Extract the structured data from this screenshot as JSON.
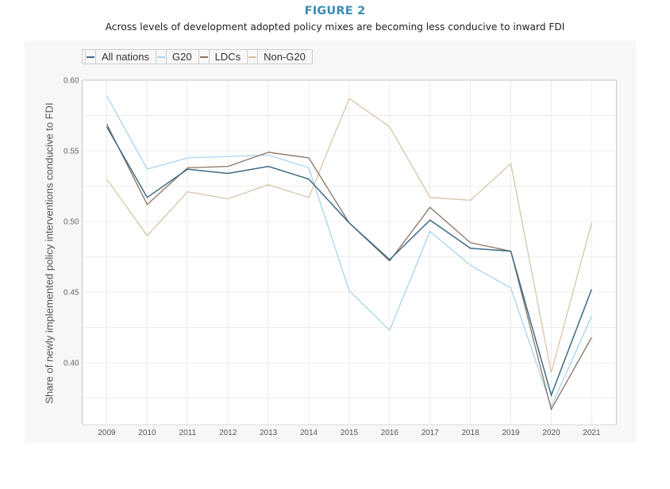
{
  "figure": {
    "label": "FIGURE 2",
    "subtitle": "Across levels of development adopted policy mixes are becoming less conducive to inward FDI"
  },
  "chart_data": {
    "type": "line",
    "title": "FIGURE 2",
    "subtitle": "Across levels of development adopted policy mixes are becoming less conducive to inward FDI",
    "xlabel": "",
    "ylabel": "Share of newly implemented policy interventions conducive to FDI",
    "x": [
      2009,
      2010,
      2011,
      2012,
      2013,
      2014,
      2015,
      2016,
      2017,
      2018,
      2019,
      2020,
      2021
    ],
    "x_tick_labels": [
      "2009",
      "2010",
      "2011",
      "2012",
      "2013",
      "2014",
      "2015",
      "2016",
      "2017",
      "2018",
      "2019",
      "2020",
      "2021"
    ],
    "y_tick_labels": [
      "0.60",
      "0.55",
      "0.50",
      "0.45",
      "0.40"
    ],
    "y_ticks": [
      0.6,
      0.55,
      0.5,
      0.45,
      0.4
    ],
    "ylim": [
      0.356,
      0.6
    ],
    "grid": true,
    "legend_position": "top-left",
    "series": [
      {
        "name": "All nations",
        "color": "#3d6a85",
        "values": [
          0.567,
          0.517,
          0.537,
          0.534,
          0.539,
          0.53,
          0.499,
          0.473,
          0.501,
          0.481,
          0.479,
          0.377,
          0.452
        ]
      },
      {
        "name": "G20",
        "color": "#a8d4ef",
        "values": [
          0.589,
          0.537,
          0.545,
          0.546,
          0.547,
          0.538,
          0.451,
          0.423,
          0.493,
          0.469,
          0.453,
          0.369,
          0.433
        ]
      },
      {
        "name": "LDCs",
        "color": "#8a7363",
        "values": [
          0.569,
          0.512,
          0.538,
          0.539,
          0.549,
          0.545,
          0.499,
          0.472,
          0.51,
          0.485,
          0.479,
          0.367,
          0.418
        ]
      },
      {
        "name": "Non-G20",
        "color": "#d8c4a8",
        "values": [
          0.53,
          0.49,
          0.521,
          0.516,
          0.526,
          0.517,
          0.587,
          0.567,
          0.517,
          0.515,
          0.541,
          0.393,
          0.499
        ]
      }
    ]
  }
}
